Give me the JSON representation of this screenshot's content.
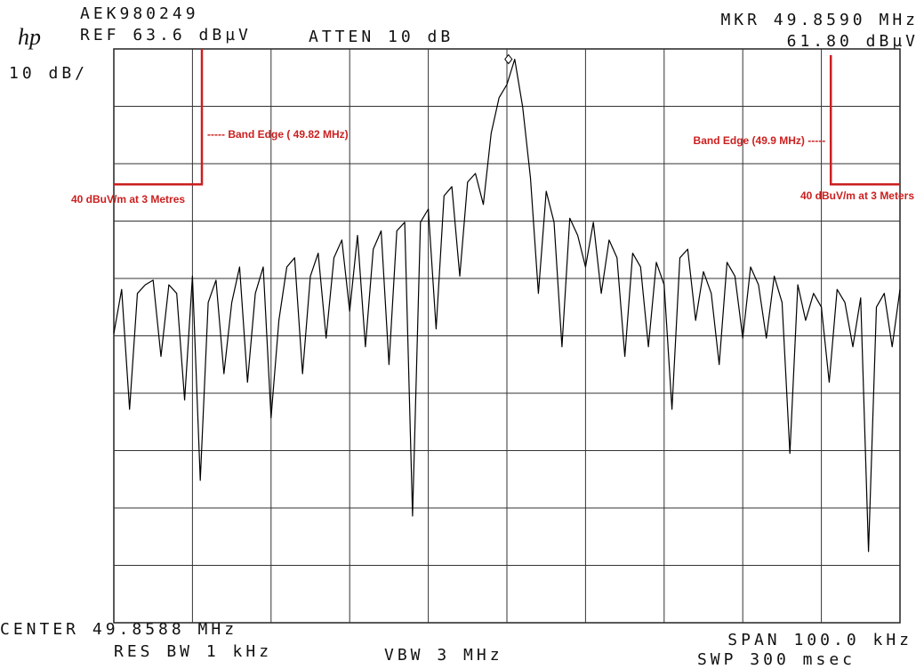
{
  "chart_data": {
    "type": "line",
    "logo": "hp",
    "id_label": "AEK980249",
    "ref_label": "REF 63.6 dBµV",
    "atten_label": "ATTEN 10 dB",
    "scale_label": "10 dB/",
    "center_label": "CENTER 49.8588 MHz",
    "rbw_label": "RES BW 1 kHz",
    "vbw_label": "VBW 3 MHz",
    "span_label": "SPAN 100.0 kHz",
    "sweep_label": "SWP 300 msec",
    "marker": {
      "freq": {
        "value": 49.859,
        "label": "MKR 49.8590 MHz"
      },
      "level": {
        "value": 61.8,
        "label": "61.80 dBµV"
      }
    },
    "xlim": [
      49.8088,
      49.9088
    ],
    "ylim": [
      -36.4,
      63.6
    ],
    "grid": true,
    "limit_lines": [
      {
        "edge": 49.82,
        "level": 40,
        "side": "left",
        "edge_label": "----- Band Edge ( 49.82 MHz)",
        "level_label": "40 dBuV/m at 3 Metres"
      },
      {
        "edge": 49.9,
        "level": 40,
        "side": "right",
        "edge_label": "Band Edge (49.9 MHz) -----",
        "level_label": "40 dBuV/m at 3 Meters"
      }
    ],
    "x": [
      49.8088,
      49.8098,
      49.8108,
      49.8118,
      49.8128,
      49.8138,
      49.8148,
      49.8158,
      49.8168,
      49.8178,
      49.8188,
      49.8198,
      49.8208,
      49.8218,
      49.8228,
      49.8238,
      49.8248,
      49.8258,
      49.8268,
      49.8278,
      49.8288,
      49.8298,
      49.8308,
      49.8318,
      49.8328,
      49.8338,
      49.8348,
      49.8358,
      49.8368,
      49.8378,
      49.8388,
      49.8398,
      49.8408,
      49.8418,
      49.8428,
      49.8438,
      49.8448,
      49.8458,
      49.8468,
      49.8478,
      49.8488,
      49.8498,
      49.8508,
      49.8518,
      49.8528,
      49.8538,
      49.8548,
      49.8558,
      49.8568,
      49.8578,
      49.8588,
      49.8598,
      49.8608,
      49.8618,
      49.8628,
      49.8638,
      49.8648,
      49.8658,
      49.8668,
      49.8678,
      49.8688,
      49.8698,
      49.8708,
      49.8718,
      49.8728,
      49.8738,
      49.8748,
      49.8758,
      49.8768,
      49.8778,
      49.8788,
      49.8798,
      49.8808,
      49.8818,
      49.8828,
      49.8838,
      49.8848,
      49.8858,
      49.8868,
      49.8878,
      49.8888,
      49.8898,
      49.8908,
      49.8918,
      49.8928,
      49.8938,
      49.8948,
      49.8958,
      49.8968,
      49.8978,
      49.8988,
      49.8998,
      49.9008,
      49.9018,
      49.9028,
      49.9038,
      49.9048,
      49.9058,
      49.9068,
      49.9078,
      49.9088
    ],
    "series": [
      {
        "color": "#000000",
        "values": [
          14,
          21.7,
          0.8,
          21,
          22.5,
          23.3,
          10,
          22.5,
          21,
          2.4,
          24,
          -11.6,
          19.4,
          23.3,
          7,
          19.4,
          25.6,
          5.5,
          21,
          25.6,
          -0.7,
          16.3,
          25.6,
          27.2,
          7,
          24,
          28,
          13.2,
          27.2,
          30.3,
          17.9,
          31.1,
          11.7,
          28.7,
          31.9,
          8.6,
          31.9,
          33.4,
          -17.8,
          33.4,
          35.7,
          14.8,
          38,
          39.6,
          24,
          40.4,
          41.9,
          36.5,
          48.9,
          55.1,
          57.4,
          61.8,
          53.5,
          41.1,
          21,
          38.8,
          33.4,
          11.7,
          34.1,
          31.1,
          25.6,
          33.4,
          21,
          30.3,
          27.2,
          10,
          28,
          25.6,
          11.7,
          26.4,
          22.5,
          0.8,
          27.2,
          28.7,
          16.3,
          24.8,
          21,
          8.6,
          26.4,
          24,
          13.2,
          25.6,
          22.5,
          13.2,
          24,
          19.4,
          -6.9,
          22.5,
          16.3,
          21,
          18.6,
          5.5,
          21.7,
          19.4,
          11.7,
          20.2,
          -24,
          18.6,
          21,
          11.7,
          21.7
        ]
      }
    ]
  }
}
